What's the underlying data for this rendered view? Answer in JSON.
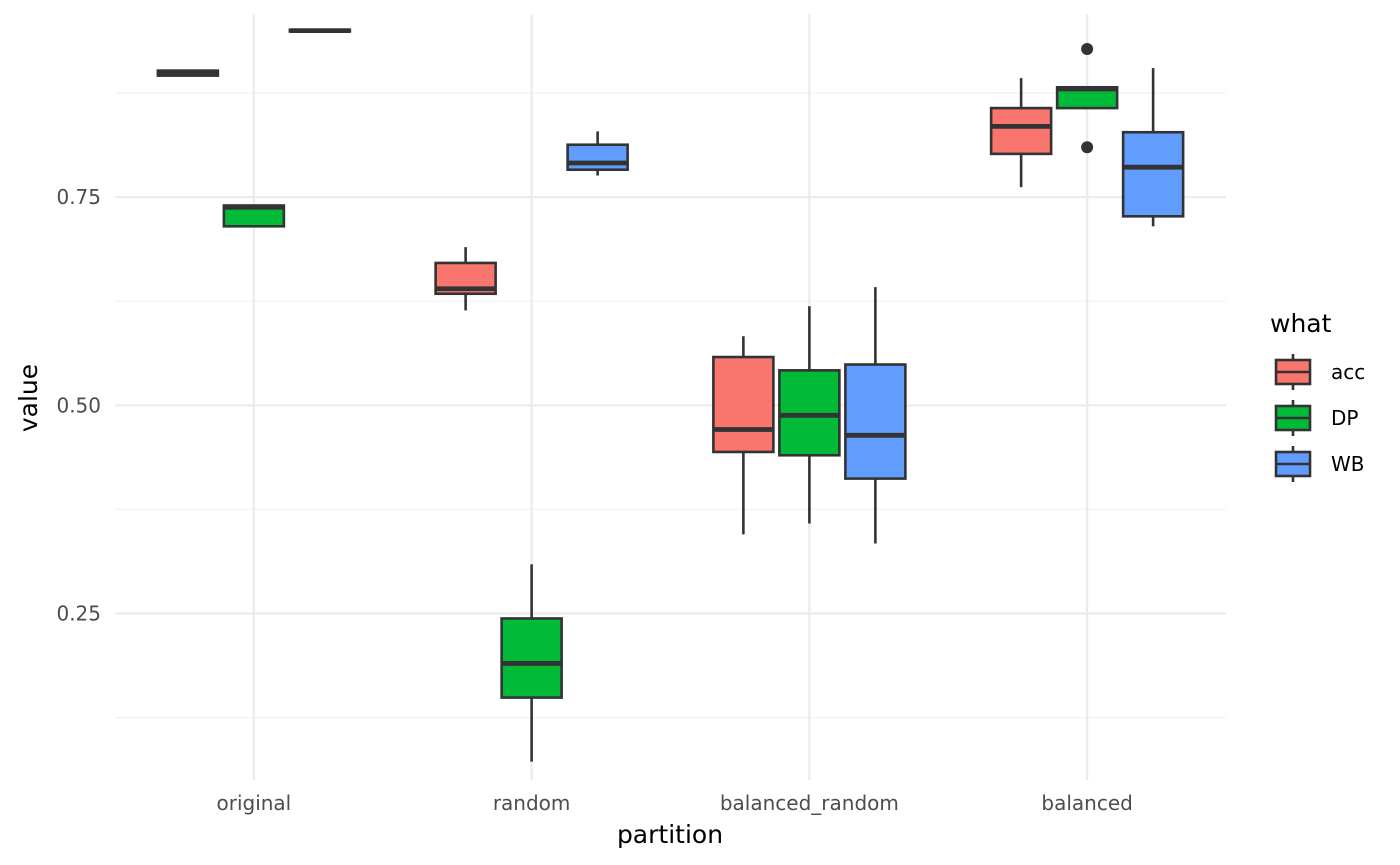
{
  "chart_data": {
    "type": "boxplot",
    "xlabel": "partition",
    "ylabel": "value",
    "categories": [
      "original",
      "random",
      "balanced_random",
      "balanced"
    ],
    "ylim": [
      0.05,
      0.97
    ],
    "y_ticks": [
      0.25,
      0.5,
      0.75
    ],
    "y_tick_labels": [
      "0.25",
      "0.50",
      "0.75"
    ],
    "y_minor_ticks": [
      0.125,
      0.375,
      0.625,
      0.875
    ],
    "grid": true,
    "legend": {
      "title": "what",
      "position": "right",
      "entries": [
        {
          "name": "acc",
          "color": "#F8766D"
        },
        {
          "name": "DP",
          "color": "#00BA38"
        },
        {
          "name": "WB",
          "color": "#619CFF"
        }
      ]
    },
    "series": [
      {
        "name": "acc",
        "color": "#F8766D",
        "boxes": [
          {
            "category": "original",
            "whisker_low": 0.896,
            "q1": 0.896,
            "median": 0.898,
            "q3": 0.902,
            "whisker_high": 0.902,
            "outliers": []
          },
          {
            "category": "random",
            "whisker_low": 0.614,
            "q1": 0.634,
            "median": 0.64,
            "q3": 0.671,
            "whisker_high": 0.69,
            "outliers": []
          },
          {
            "category": "balanced_random",
            "whisker_low": 0.345,
            "q1": 0.444,
            "median": 0.471,
            "q3": 0.558,
            "whisker_high": 0.583,
            "outliers": []
          },
          {
            "category": "balanced",
            "whisker_low": 0.762,
            "q1": 0.802,
            "median": 0.835,
            "q3": 0.857,
            "whisker_high": 0.893,
            "outliers": []
          }
        ]
      },
      {
        "name": "DP",
        "color": "#00BA38",
        "boxes": [
          {
            "category": "original",
            "whisker_low": 0.715,
            "q1": 0.715,
            "median": 0.738,
            "q3": 0.74,
            "whisker_high": 0.74,
            "outliers": []
          },
          {
            "category": "random",
            "whisker_low": 0.072,
            "q1": 0.149,
            "median": 0.19,
            "q3": 0.244,
            "whisker_high": 0.309,
            "outliers": []
          },
          {
            "category": "balanced_random",
            "whisker_low": 0.358,
            "q1": 0.44,
            "median": 0.488,
            "q3": 0.542,
            "whisker_high": 0.619,
            "outliers": []
          },
          {
            "category": "balanced",
            "whisker_low": 0.857,
            "q1": 0.857,
            "median": 0.88,
            "q3": 0.882,
            "whisker_high": 0.882,
            "outliers": [
              0.928,
              0.81
            ]
          }
        ]
      },
      {
        "name": "WB",
        "color": "#619CFF",
        "boxes": [
          {
            "category": "original",
            "whisker_low": 0.949,
            "q1": 0.949,
            "median": 0.95,
            "q3": 0.951,
            "whisker_high": 0.951,
            "outliers": []
          },
          {
            "category": "random",
            "whisker_low": 0.776,
            "q1": 0.783,
            "median": 0.791,
            "q3": 0.813,
            "whisker_high": 0.829,
            "outliers": []
          },
          {
            "category": "balanced_random",
            "whisker_low": 0.334,
            "q1": 0.412,
            "median": 0.464,
            "q3": 0.549,
            "whisker_high": 0.642,
            "outliers": []
          },
          {
            "category": "balanced",
            "whisker_low": 0.715,
            "q1": 0.727,
            "median": 0.786,
            "q3": 0.828,
            "whisker_high": 0.905,
            "outliers": []
          }
        ]
      }
    ]
  }
}
